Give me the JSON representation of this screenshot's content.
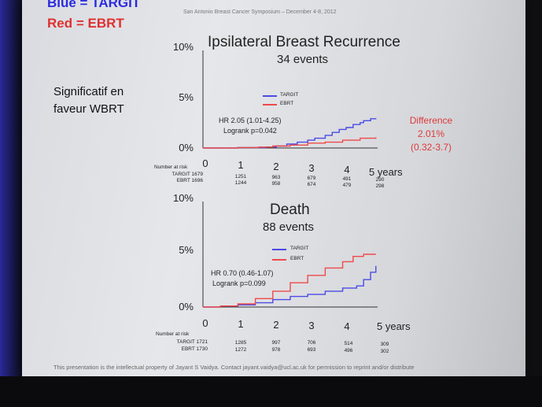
{
  "header": {
    "legend_blue": "Blue = TARGIT",
    "legend_red": "Red = EBRT",
    "conference": "San Antonio Breast Cancer Symposium – December 4-8, 2012"
  },
  "note": "Significatif en faveur WBRT",
  "footer": "This presentation is the intellectual property of Jayant S Vaidya.  Contact jayant.vaidya@ucl.ac.uk for permission to reprint and/or distribute",
  "colors": {
    "targit": "#4a4ae6",
    "ebrt": "#ee4a4a",
    "difference": "#dd3a3a"
  },
  "chart_data": [
    {
      "type": "line",
      "title": "Ipsilateral Breast Recurrence",
      "subtitle": "34 events",
      "y_tick_labels": [
        "10%",
        "5%",
        "0%"
      ],
      "x_tick_labels": [
        "0",
        "1",
        "2",
        "3",
        "4",
        "5 years"
      ],
      "ylim": [
        0,
        10
      ],
      "xlim": [
        0,
        5
      ],
      "grid": false,
      "legend_position": "top-center",
      "annotation": {
        "line1": "HR 2.05 (1.01-4.25)",
        "line2": "Logrank  p=0.042"
      },
      "difference": {
        "label": "Difference",
        "value": "2.01%",
        "ci": "(0.32-3.7)"
      },
      "series": [
        {
          "name": "TARGIT",
          "color": "#4a4ae6",
          "x": [
            0,
            1.0,
            1.8,
            2.1,
            2.4,
            2.7,
            3.0,
            3.2,
            3.5,
            3.7,
            3.9,
            4.1,
            4.3,
            4.5,
            4.6,
            4.8,
            4.95
          ],
          "y": [
            0,
            0.05,
            0.1,
            0.2,
            0.4,
            0.6,
            0.8,
            1.0,
            1.3,
            1.6,
            1.9,
            2.1,
            2.4,
            2.6,
            2.8,
            3.0,
            3.05
          ]
        },
        {
          "name": "EBRT",
          "color": "#ee4a4a",
          "x": [
            0,
            1.0,
            1.6,
            2.0,
            2.5,
            3.0,
            3.5,
            4.0,
            4.5,
            4.95
          ],
          "y": [
            0,
            0.05,
            0.1,
            0.2,
            0.3,
            0.5,
            0.6,
            0.8,
            1.0,
            1.1
          ]
        }
      ],
      "risk_table": {
        "header": "Number at risk",
        "rows": [
          {
            "label": "TARGIT 1679",
            "values": [
              "1251",
              "963",
              "679",
              "491",
              "290"
            ]
          },
          {
            "label": "EBRT 1696",
            "values": [
              "1244",
              "958",
              "674",
              "479",
              "298"
            ]
          }
        ]
      }
    },
    {
      "type": "line",
      "title": "Death",
      "subtitle": "88 events",
      "y_tick_labels": [
        "10%",
        "5%",
        "0%"
      ],
      "x_tick_labels": [
        "0",
        "1",
        "2",
        "3",
        "4",
        "5 years"
      ],
      "ylim": [
        0,
        10
      ],
      "xlim": [
        0,
        5
      ],
      "grid": false,
      "legend_position": "top-center",
      "annotation": {
        "line1": "HR 0.70 (0.46-1.07)",
        "line2": "Logrank  p=0.099"
      },
      "series": [
        {
          "name": "TARGIT",
          "color": "#4a4ae6",
          "x": [
            0,
            0.5,
            1.0,
            1.5,
            2.0,
            2.5,
            3.0,
            3.5,
            4.0,
            4.4,
            4.6,
            4.8,
            4.95
          ],
          "y": [
            0,
            0.1,
            0.2,
            0.4,
            0.7,
            1.0,
            1.2,
            1.5,
            1.8,
            2.0,
            2.6,
            3.3,
            3.9
          ]
        },
        {
          "name": "EBRT",
          "color": "#ee4a4a",
          "x": [
            0,
            0.5,
            1.0,
            1.5,
            2.0,
            2.5,
            3.0,
            3.5,
            4.0,
            4.3,
            4.6,
            4.95
          ],
          "y": [
            0,
            0.1,
            0.3,
            0.8,
            1.5,
            2.3,
            3.0,
            3.7,
            4.3,
            4.8,
            5.0,
            5.0
          ]
        }
      ],
      "risk_table": {
        "header": "Number at risk",
        "rows": [
          {
            "label": "TARGIT 1721",
            "values": [
              "1285",
              "997",
              "706",
              "514",
              "309"
            ]
          },
          {
            "label": "EBRT 1730",
            "values": [
              "1272",
              "978",
              "693",
              "496",
              "302"
            ]
          }
        ]
      }
    }
  ]
}
